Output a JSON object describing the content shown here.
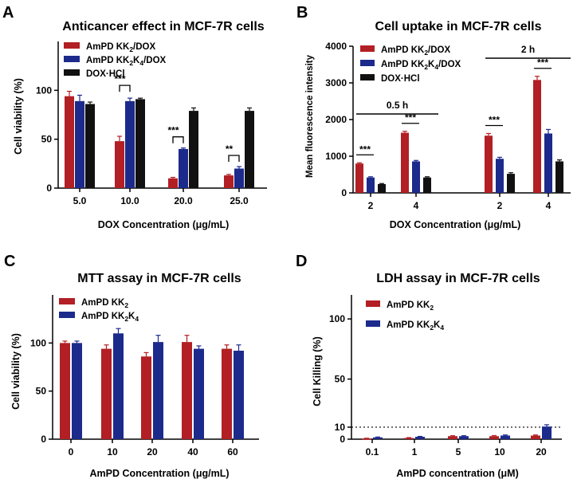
{
  "colors": {
    "red": "#b21f24",
    "blue": "#1c2a8c",
    "black": "#111111"
  },
  "chart_data": [
    {
      "panel": "A",
      "type": "bar",
      "title": "Anticancer effect in MCF-7R cells",
      "xlabel": "DOX Concentration (μg/mL)",
      "ylabel": "Cell viability (%)",
      "categories": [
        "5.0",
        "10.0",
        "20.0",
        "25.0"
      ],
      "ylim": [
        0,
        150
      ],
      "yticks": [
        "0",
        "50",
        "100"
      ],
      "ytick_values": [
        0,
        50,
        100
      ],
      "series": [
        {
          "name": "AmPD KK₂/DOX",
          "color": "red",
          "values": [
            94,
            48,
            10,
            13
          ],
          "errors": [
            5,
            5,
            1,
            1
          ]
        },
        {
          "name": "AmPD KK₂K₄/DOX",
          "color": "blue",
          "values": [
            89,
            89,
            40,
            20
          ],
          "errors": [
            6,
            3,
            1,
            2
          ]
        },
        {
          "name": "DOX·HCl",
          "color": "black",
          "values": [
            86,
            91,
            79,
            79
          ],
          "errors": [
            2,
            1,
            3,
            3
          ]
        }
      ],
      "significance": [
        {
          "category": 1,
          "text": "***"
        },
        {
          "category": 2,
          "text": "***"
        },
        {
          "category": 3,
          "text": "**"
        }
      ]
    },
    {
      "panel": "B",
      "type": "bar",
      "title": "Cell uptake in MCF-7R cells",
      "xlabel": "DOX Concentration (μg/mL)",
      "ylabel": "Mean fluorescence intensity",
      "categories": [
        "2",
        "4",
        "2",
        "4"
      ],
      "ylim": [
        0,
        4000
      ],
      "yticks": [
        "0",
        "1000",
        "2000",
        "3000",
        "4000"
      ],
      "ytick_values": [
        0,
        1000,
        2000,
        3000,
        4000
      ],
      "series": [
        {
          "name": "AmPD KK₂/DOX",
          "color": "red",
          "values": [
            800,
            1640,
            1560,
            3080
          ],
          "errors": [
            20,
            40,
            60,
            100
          ]
        },
        {
          "name": "AmPD KK₂K₄/DOX",
          "color": "blue",
          "values": [
            420,
            860,
            930,
            1620
          ],
          "errors": [
            20,
            25,
            40,
            110
          ]
        },
        {
          "name": "DOX·HCl",
          "color": "black",
          "values": [
            240,
            420,
            520,
            860
          ],
          "errors": [
            15,
            20,
            30,
            40
          ]
        }
      ],
      "groups": [
        {
          "label": "0.5 h",
          "categories": [
            0,
            1
          ]
        },
        {
          "label": "2 h",
          "categories": [
            2,
            3
          ]
        }
      ],
      "significance": [
        {
          "category": 0,
          "text": "***"
        },
        {
          "category": 1,
          "text": "***"
        },
        {
          "category": 2,
          "text": "***"
        },
        {
          "category": 3,
          "text": "***"
        }
      ]
    },
    {
      "panel": "C",
      "type": "bar",
      "title": "MTT assay in MCF-7R cells",
      "xlabel": "AmPD Concentration (μg/mL)",
      "ylabel": "Cell viability (%)",
      "categories": [
        "0",
        "10",
        "20",
        "40",
        "60"
      ],
      "ylim": [
        0,
        150
      ],
      "yticks": [
        "0",
        "50",
        "100"
      ],
      "ytick_values": [
        0,
        50,
        100
      ],
      "series": [
        {
          "name": "AmPD KK₂",
          "color": "red",
          "values": [
            100,
            94,
            86,
            101,
            94
          ],
          "errors": [
            2,
            4,
            4,
            7,
            4
          ]
        },
        {
          "name": "AmPD KK₂K₄",
          "color": "blue",
          "values": [
            100,
            110,
            101,
            94,
            92
          ],
          "errors": [
            2,
            5,
            7,
            3,
            6
          ]
        }
      ]
    },
    {
      "panel": "D",
      "type": "bar",
      "title": "LDH assay in MCF-7R cells",
      "xlabel": "AmPD concentration (μM)",
      "ylabel": "Cell Killing (%)",
      "categories": [
        "0.1",
        "1",
        "5",
        "10",
        "20"
      ],
      "ylim": [
        0,
        120
      ],
      "yticks": [
        "0",
        "10",
        "50",
        "100"
      ],
      "ytick_values": [
        0,
        10,
        50,
        100
      ],
      "reference_line": 10,
      "series": [
        {
          "name": "AmPD KK₂",
          "color": "red",
          "values": [
            0.5,
            1,
            2.5,
            2.5,
            3
          ],
          "errors": [
            0.3,
            0.3,
            0.4,
            0.5,
            0.5
          ]
        },
        {
          "name": "AmPD KK₂K₄",
          "color": "blue",
          "values": [
            1.5,
            2,
            2.5,
            3,
            10.5
          ],
          "errors": [
            0.3,
            0.3,
            0.4,
            0.5,
            1.5
          ]
        }
      ]
    }
  ]
}
